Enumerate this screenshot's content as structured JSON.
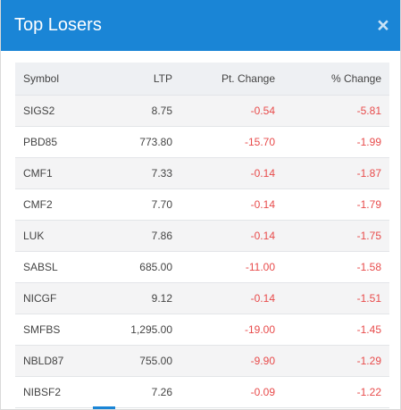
{
  "modal": {
    "title": "Top Losers",
    "close_icon": "×"
  },
  "table": {
    "columns": [
      "Symbol",
      "LTP",
      "Pt. Change",
      "% Change"
    ],
    "rows": [
      {
        "symbol": "SIGS2",
        "ltp": "8.75",
        "pt_change": "-0.54",
        "pct_change": "-5.81"
      },
      {
        "symbol": "PBD85",
        "ltp": "773.80",
        "pt_change": "-15.70",
        "pct_change": "-1.99"
      },
      {
        "symbol": "CMF1",
        "ltp": "7.33",
        "pt_change": "-0.14",
        "pct_change": "-1.87"
      },
      {
        "symbol": "CMF2",
        "ltp": "7.70",
        "pt_change": "-0.14",
        "pct_change": "-1.79"
      },
      {
        "symbol": "LUK",
        "ltp": "7.86",
        "pt_change": "-0.14",
        "pct_change": "-1.75"
      },
      {
        "symbol": "SABSL",
        "ltp": "685.00",
        "pt_change": "-11.00",
        "pct_change": "-1.58"
      },
      {
        "symbol": "NICGF",
        "ltp": "9.12",
        "pt_change": "-0.14",
        "pct_change": "-1.51"
      },
      {
        "symbol": "SMFBS",
        "ltp": "1,295.00",
        "pt_change": "-19.00",
        "pct_change": "-1.45"
      },
      {
        "symbol": "NBLD87",
        "ltp": "755.00",
        "pt_change": "-9.90",
        "pct_change": "-1.29"
      },
      {
        "symbol": "NIBSF2",
        "ltp": "7.26",
        "pt_change": "-0.09",
        "pct_change": "-1.22"
      }
    ]
  },
  "colors": {
    "header_bg": "#1a85d6",
    "negative": "#e84b4b",
    "row_alt": "#f4f4f5",
    "table_header_bg": "#eef0f3"
  }
}
